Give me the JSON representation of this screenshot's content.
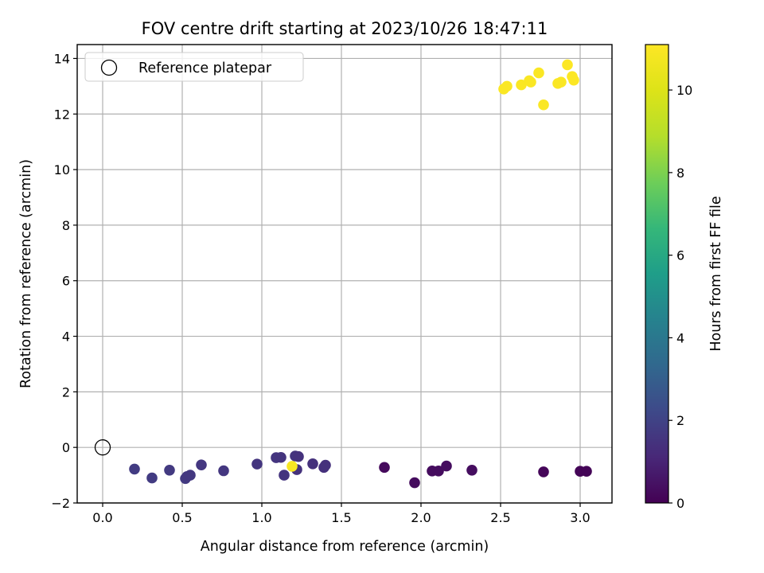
{
  "chart_data": {
    "type": "scatter",
    "title": "FOV centre drift starting at 2023/10/26 18:47:11",
    "xlabel": "Angular distance from reference (arcmin)",
    "ylabel": "Rotation from reference (arcmin)",
    "xlim": [
      -0.16,
      3.2
    ],
    "ylim": [
      -2.0,
      14.5
    ],
    "xticks": [
      0.0,
      0.5,
      1.0,
      1.5,
      2.0,
      2.5,
      3.0
    ],
    "xtick_labels": [
      "0.0",
      "0.5",
      "1.0",
      "1.5",
      "2.0",
      "2.5",
      "3.0"
    ],
    "yticks": [
      -2,
      0,
      2,
      4,
      6,
      8,
      10,
      12,
      14
    ],
    "ytick_labels": [
      "−2",
      "0",
      "2",
      "4",
      "6",
      "8",
      "10",
      "12",
      "14"
    ],
    "grid": true,
    "legend": {
      "placement": "upper-left",
      "entries": [
        "Reference platepar"
      ]
    },
    "reference_point": {
      "name": "Reference platepar",
      "x": 0.0,
      "y": 0.0
    },
    "colorbar": {
      "label": "Hours from first FF file",
      "range": [
        0,
        11.1
      ],
      "ticks": [
        0,
        2,
        4,
        6,
        8,
        10
      ],
      "tick_labels": [
        "0",
        "2",
        "4",
        "6",
        "8",
        "10"
      ],
      "colormap": "viridis"
    },
    "series": [
      {
        "points": [
          {
            "x": 1.77,
            "y": -0.72,
            "c": 0.25
          },
          {
            "x": 1.96,
            "y": -1.27,
            "c": 0.3
          },
          {
            "x": 2.07,
            "y": -0.85,
            "c": 0.3
          },
          {
            "x": 2.11,
            "y": -0.85,
            "c": 0.3
          },
          {
            "x": 2.16,
            "y": -0.67,
            "c": 0.35
          },
          {
            "x": 2.32,
            "y": -0.82,
            "c": 0.35
          },
          {
            "x": 2.77,
            "y": -0.88,
            "c": 0.15
          },
          {
            "x": 3.0,
            "y": -0.86,
            "c": 0.1
          },
          {
            "x": 3.04,
            "y": -0.86,
            "c": 0.1
          },
          {
            "x": 0.2,
            "y": -0.78,
            "c": 1.75
          },
          {
            "x": 0.31,
            "y": -1.1,
            "c": 1.75
          },
          {
            "x": 0.42,
            "y": -0.82,
            "c": 1.7
          },
          {
            "x": 0.52,
            "y": -1.12,
            "c": 1.7
          },
          {
            "x": 0.53,
            "y": -1.05,
            "c": 1.65
          },
          {
            "x": 0.55,
            "y": -1.0,
            "c": 1.65
          },
          {
            "x": 0.62,
            "y": -0.63,
            "c": 1.6
          },
          {
            "x": 0.76,
            "y": -0.84,
            "c": 1.6
          },
          {
            "x": 0.97,
            "y": -0.6,
            "c": 1.55
          },
          {
            "x": 1.09,
            "y": -0.37,
            "c": 1.55
          },
          {
            "x": 1.12,
            "y": -0.36,
            "c": 1.5
          },
          {
            "x": 1.14,
            "y": -1.0,
            "c": 1.5
          },
          {
            "x": 1.21,
            "y": -0.31,
            "c": 1.5
          },
          {
            "x": 1.22,
            "y": -0.8,
            "c": 1.45
          },
          {
            "x": 1.23,
            "y": -0.33,
            "c": 1.45
          },
          {
            "x": 1.32,
            "y": -0.59,
            "c": 1.4
          },
          {
            "x": 1.39,
            "y": -0.72,
            "c": 1.4
          },
          {
            "x": 1.4,
            "y": -0.64,
            "c": 1.4
          },
          {
            "x": 1.19,
            "y": -0.68,
            "c": 10.9
          },
          {
            "x": 2.52,
            "y": 12.9,
            "c": 11.0
          },
          {
            "x": 2.54,
            "y": 13.0,
            "c": 11.0
          },
          {
            "x": 2.63,
            "y": 13.05,
            "c": 11.0
          },
          {
            "x": 2.68,
            "y": 13.2,
            "c": 11.0
          },
          {
            "x": 2.69,
            "y": 13.15,
            "c": 11.0
          },
          {
            "x": 2.74,
            "y": 13.48,
            "c": 11.0
          },
          {
            "x": 2.77,
            "y": 12.33,
            "c": 11.0
          },
          {
            "x": 2.86,
            "y": 13.1,
            "c": 11.0
          },
          {
            "x": 2.88,
            "y": 13.15,
            "c": 11.0
          },
          {
            "x": 2.92,
            "y": 13.77,
            "c": 11.05
          },
          {
            "x": 2.95,
            "y": 13.35,
            "c": 11.05
          },
          {
            "x": 2.96,
            "y": 13.22,
            "c": 11.05
          }
        ]
      }
    ]
  }
}
